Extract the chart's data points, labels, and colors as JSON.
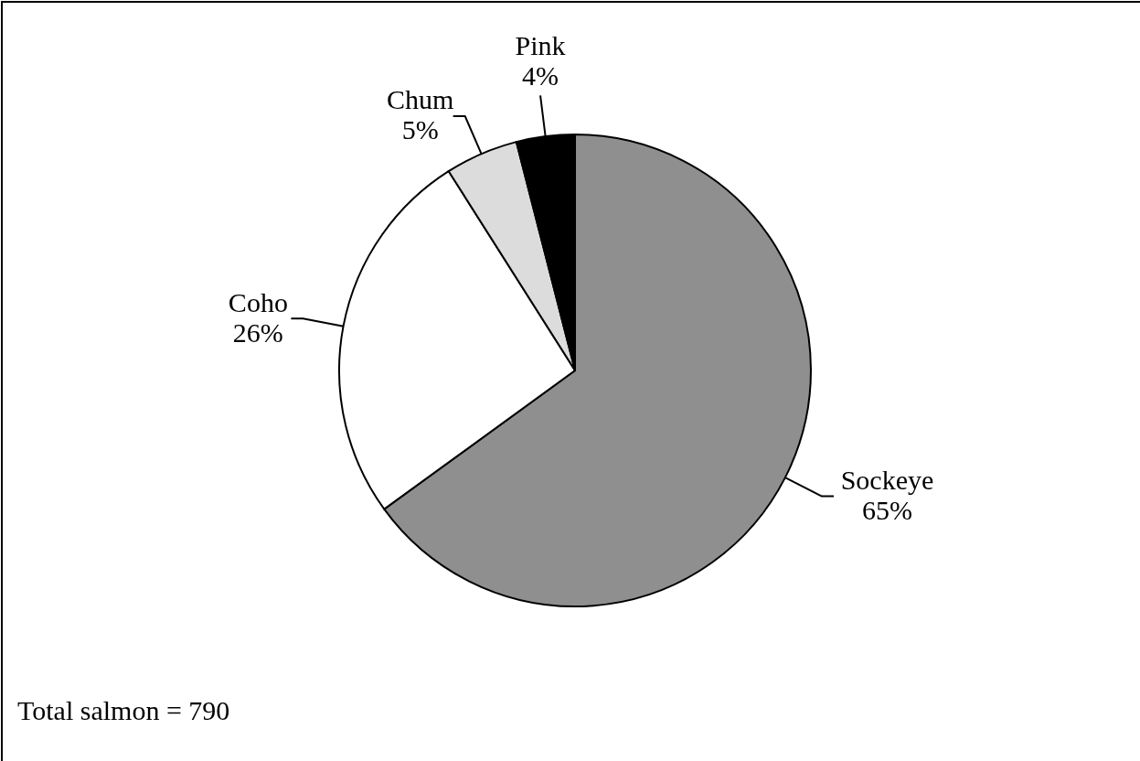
{
  "chart_data": {
    "type": "pie",
    "categories": [
      "Sockeye",
      "Coho",
      "Chum",
      "Pink"
    ],
    "values": [
      65,
      26,
      5,
      4
    ],
    "colors": [
      "#8f8f8f",
      "#ffffff",
      "#dcdcdc",
      "#000000"
    ],
    "value_labels": [
      "65%",
      "26%",
      "5%",
      "4%"
    ],
    "annotations": [
      "Total salmon = 790"
    ]
  }
}
